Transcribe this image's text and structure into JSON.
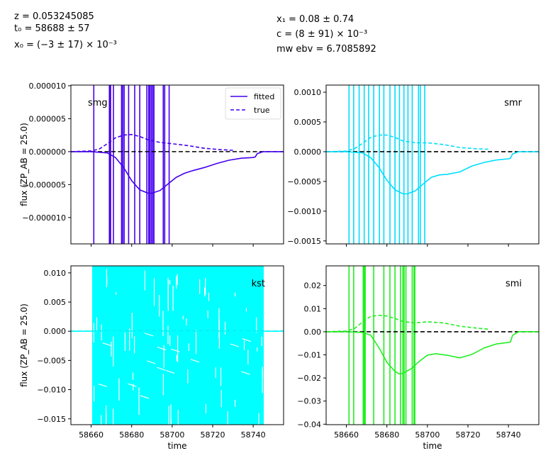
{
  "header": {
    "z_text": "z = 0.053245085",
    "t0_text": "t₀ = 58688 ± 57",
    "x0_text": "x₀ = (−3 ± 17) × 10⁻³",
    "x1_text": "x₁ = 0.08 ± 0.74",
    "c_text": "c = (8 ± 91) × 10⁻³",
    "mwebv_text": "mw ebv = 6.7085892"
  },
  "colors": {
    "smg": "#4400ee",
    "smr": "#00ddff",
    "kst": "#00ffff",
    "smi": "#22ee22",
    "zero_line": "#000000"
  },
  "chart_data": [
    {
      "type": "line",
      "band": "smg",
      "legend": [
        "fitted",
        "true"
      ],
      "legend_placement": "top-right",
      "ylabel": "flux (ZP_AB = 25.0)",
      "xlabel": "",
      "xlim": [
        58650,
        58755
      ],
      "ylim": [
        -1.4e-05,
        1.01e-05
      ],
      "yticks": [
        "0.000010",
        "0.000005",
        "0.000000",
        "−0.000005",
        "−0.000010"
      ],
      "ytick_values": [
        1e-05,
        5e-06,
        0,
        -5e-06,
        -1e-05
      ],
      "xticks": [],
      "fitted": {
        "x": [
          58650,
          58660,
          58668,
          58672,
          58676,
          58680,
          58684,
          58688,
          58690,
          58694,
          58698,
          58702,
          58706,
          58710,
          58716,
          58722,
          58728,
          58734,
          58740,
          58741,
          58742,
          58745,
          58755
        ],
        "y": [
          0,
          0,
          -2e-07,
          -9e-07,
          -2.4e-06,
          -4.4e-06,
          -5.8e-06,
          -6.3e-06,
          -6.3e-06,
          -5.9e-06,
          -4.9e-06,
          -3.9e-06,
          -3.3e-06,
          -2.9e-06,
          -2.4e-06,
          -1.8e-06,
          -1.3e-06,
          -1e-06,
          -9e-07,
          -8e-07,
          -3e-07,
          0,
          0
        ]
      },
      "true": {
        "x": [
          58650,
          58660,
          58664,
          58668,
          58672,
          58676,
          58680,
          58684,
          58688,
          58694,
          58700,
          58708,
          58716,
          58724,
          58730
        ],
        "y": [
          0,
          1e-07,
          4e-07,
          1.2e-06,
          2.1e-06,
          2.5e-06,
          2.6e-06,
          2.3e-06,
          1.8e-06,
          1.4e-06,
          1.2e-06,
          9e-07,
          5e-07,
          3e-07,
          2e-07
        ]
      },
      "obs_x": [
        58661.3,
        58669.0,
        58669.3,
        58669.6,
        58671.0,
        58675.0,
        58675.6,
        58676.3,
        58678.5,
        58681.5,
        58684.0,
        58687.5,
        58688.4,
        58689.0,
        58689.7,
        58690.4,
        58691.0,
        58695.6,
        58696.3,
        58698.5
      ]
    },
    {
      "type": "line",
      "band": "smr",
      "ylabel": "",
      "xlabel": "",
      "xlim": [
        58650,
        58755
      ],
      "ylim": [
        -0.00155,
        0.00112
      ],
      "yticks": [
        "0.0010",
        "0.0005",
        "0.0000",
        "−0.0005",
        "−0.0010",
        "−0.0015"
      ],
      "ytick_values": [
        0.001,
        0.0005,
        0,
        -0.0005,
        -0.001,
        -0.0015
      ],
      "xticks": [],
      "fitted": {
        "x": [
          58650,
          58660,
          58668,
          58672,
          58676,
          58680,
          58684,
          58688,
          58690,
          58694,
          58698,
          58702,
          58706,
          58710,
          58716,
          58722,
          58728,
          58734,
          58740,
          58741,
          58742,
          58745,
          58755
        ],
        "y": [
          0,
          0,
          -2e-05,
          -0.0001,
          -0.00026,
          -0.00048,
          -0.00064,
          -0.00071,
          -0.00071,
          -0.00066,
          -0.00054,
          -0.00043,
          -0.00039,
          -0.00038,
          -0.00034,
          -0.00024,
          -0.00018,
          -0.00014,
          -0.00012,
          -0.00011,
          -4e-05,
          0,
          0
        ]
      },
      "true": {
        "x": [
          58650,
          58660,
          58664,
          58668,
          58672,
          58676,
          58680,
          58684,
          58688,
          58694,
          58700,
          58708,
          58716,
          58724,
          58730
        ],
        "y": [
          0,
          1e-05,
          5e-05,
          0.00014,
          0.00024,
          0.00028,
          0.00028,
          0.00024,
          0.00018,
          0.00015,
          0.00015,
          0.00012,
          7e-05,
          5e-05,
          4e-05
        ]
      },
      "obs_x": [
        58661.3,
        58663.6,
        58666.3,
        58668.8,
        58671.0,
        58673.5,
        58676.3,
        58678.5,
        58681.5,
        58684.0,
        58686.2,
        58688.4,
        58690.4,
        58692.5,
        58695.6,
        58696.5,
        58698.7
      ]
    },
    {
      "type": "line",
      "band": "kst",
      "ylabel": "flux (ZP_AB = 25.0)",
      "xlabel": "time",
      "xlim": [
        58650,
        58755
      ],
      "ylim": [
        -0.016,
        0.0112
      ],
      "yticks": [
        "0.010",
        "0.005",
        "0.000",
        "−0.005",
        "−0.010",
        "−0.015"
      ],
      "ytick_values": [
        0.01,
        0.005,
        0,
        -0.005,
        -0.01,
        -0.015
      ],
      "xticks": [
        "58660",
        "58680",
        "58700",
        "58720",
        "58740"
      ],
      "xtick_values": [
        58660,
        58680,
        58700,
        58720,
        58740
      ],
      "fitted": {
        "x": [
          58650,
          58755
        ],
        "y": [
          0,
          0
        ]
      },
      "true": {
        "x": [
          58650,
          58755
        ],
        "y": [
          0,
          0
        ]
      },
      "obs_range": [
        58660.5,
        58745.2
      ]
    },
    {
      "type": "line",
      "band": "smi",
      "ylabel": "",
      "xlabel": "time",
      "xlim": [
        58650,
        58755
      ],
      "ylim": [
        -0.0402,
        0.0285
      ],
      "yticks": [
        "0.02",
        "0.01",
        "0.00",
        "−0.01",
        "−0.02",
        "−0.03",
        "−0.04"
      ],
      "ytick_values": [
        0.02,
        0.01,
        0,
        -0.01,
        -0.02,
        -0.03,
        -0.04
      ],
      "xticks": [
        "58660",
        "58680",
        "58700",
        "58720",
        "58740"
      ],
      "xtick_values": [
        58660,
        58680,
        58700,
        58720,
        58740
      ],
      "fitted": {
        "x": [
          58650,
          58660,
          58668,
          58672,
          58676,
          58680,
          58684,
          58686,
          58688,
          58692,
          58696,
          58700,
          58704,
          58710,
          58716,
          58722,
          58728,
          58734,
          58740,
          58741,
          58742,
          58745,
          58755
        ],
        "y": [
          0,
          0,
          -0.0003,
          -0.0015,
          -0.0068,
          -0.0132,
          -0.0172,
          -0.0182,
          -0.018,
          -0.016,
          -0.0128,
          -0.0101,
          -0.0095,
          -0.0102,
          -0.0113,
          -0.0098,
          -0.007,
          -0.0053,
          -0.0046,
          -0.0044,
          -0.0016,
          0,
          0
        ]
      },
      "true": {
        "x": [
          58650,
          58660,
          58664,
          58668,
          58672,
          58676,
          58680,
          58684,
          58688,
          58694,
          58700,
          58708,
          58716,
          58724,
          58730
        ],
        "y": [
          0,
          0.0003,
          0.0014,
          0.0042,
          0.0067,
          0.0071,
          0.0068,
          0.0057,
          0.0044,
          0.0038,
          0.0043,
          0.0038,
          0.0024,
          0.0016,
          0.0011
        ]
      },
      "obs_x": [
        58661.3,
        58663.6,
        58668.3,
        58668.8,
        58669.3,
        58673.5,
        58678.5,
        58681.5,
        58684.0,
        58686.7,
        58687.9,
        58688.5,
        58689.4,
        58692.5,
        58693.4,
        58693.8
      ]
    }
  ]
}
